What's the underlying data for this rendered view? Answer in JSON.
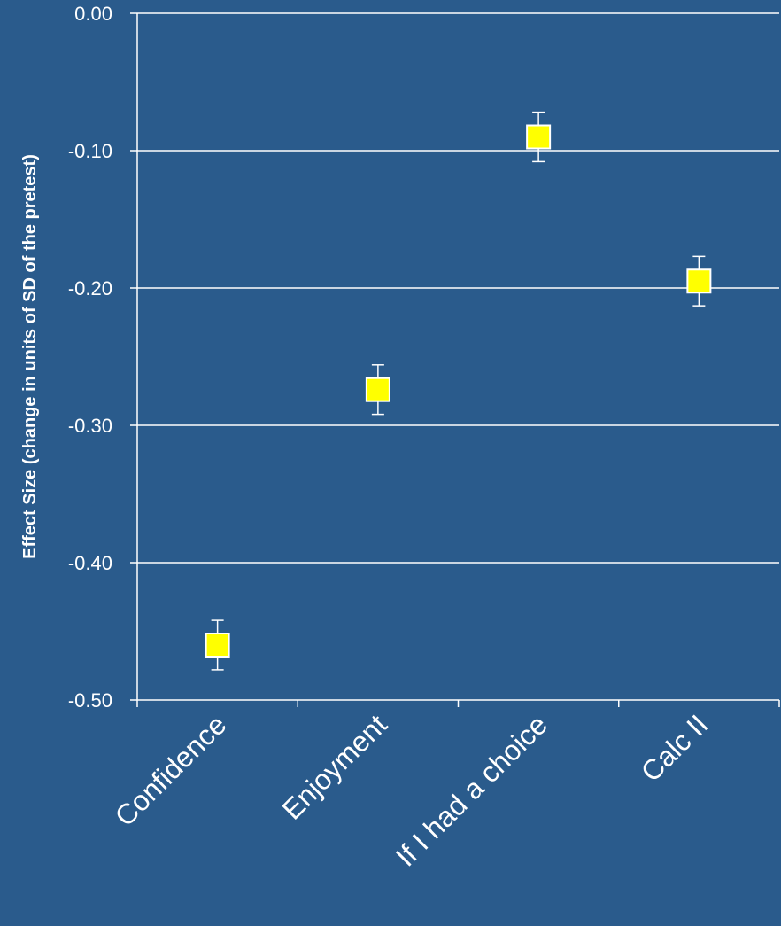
{
  "chart_data": {
    "type": "scatter",
    "categories": [
      "Confidence",
      "Enjoyment",
      "If I had a choice",
      "Calc II"
    ],
    "series": [
      {
        "values": [
          -0.46,
          -0.274,
          -0.09,
          -0.195
        ],
        "error_low": [
          -0.478,
          -0.292,
          -0.108,
          -0.213
        ],
        "error_high": [
          -0.442,
          -0.256,
          -0.072,
          -0.177
        ]
      }
    ],
    "ylabel": "Effect Size (change in units of SD of the pretest)",
    "xlabel": "",
    "title": "",
    "ylim": [
      -0.5,
      0.0
    ],
    "yticks": [
      "0.00",
      "-0.10",
      "-0.20",
      "-0.30",
      "-0.40",
      "-0.50"
    ],
    "ytick_values": [
      0.0,
      -0.1,
      -0.2,
      -0.3,
      -0.4,
      -0.5
    ],
    "grid": "horizontal",
    "marker": "square",
    "colors": {
      "background": "#2a5b8c",
      "axis": "#ffffff",
      "marker_fill": "#ffff00",
      "marker_edge": "#ffffff",
      "text": "#ffffff"
    }
  }
}
